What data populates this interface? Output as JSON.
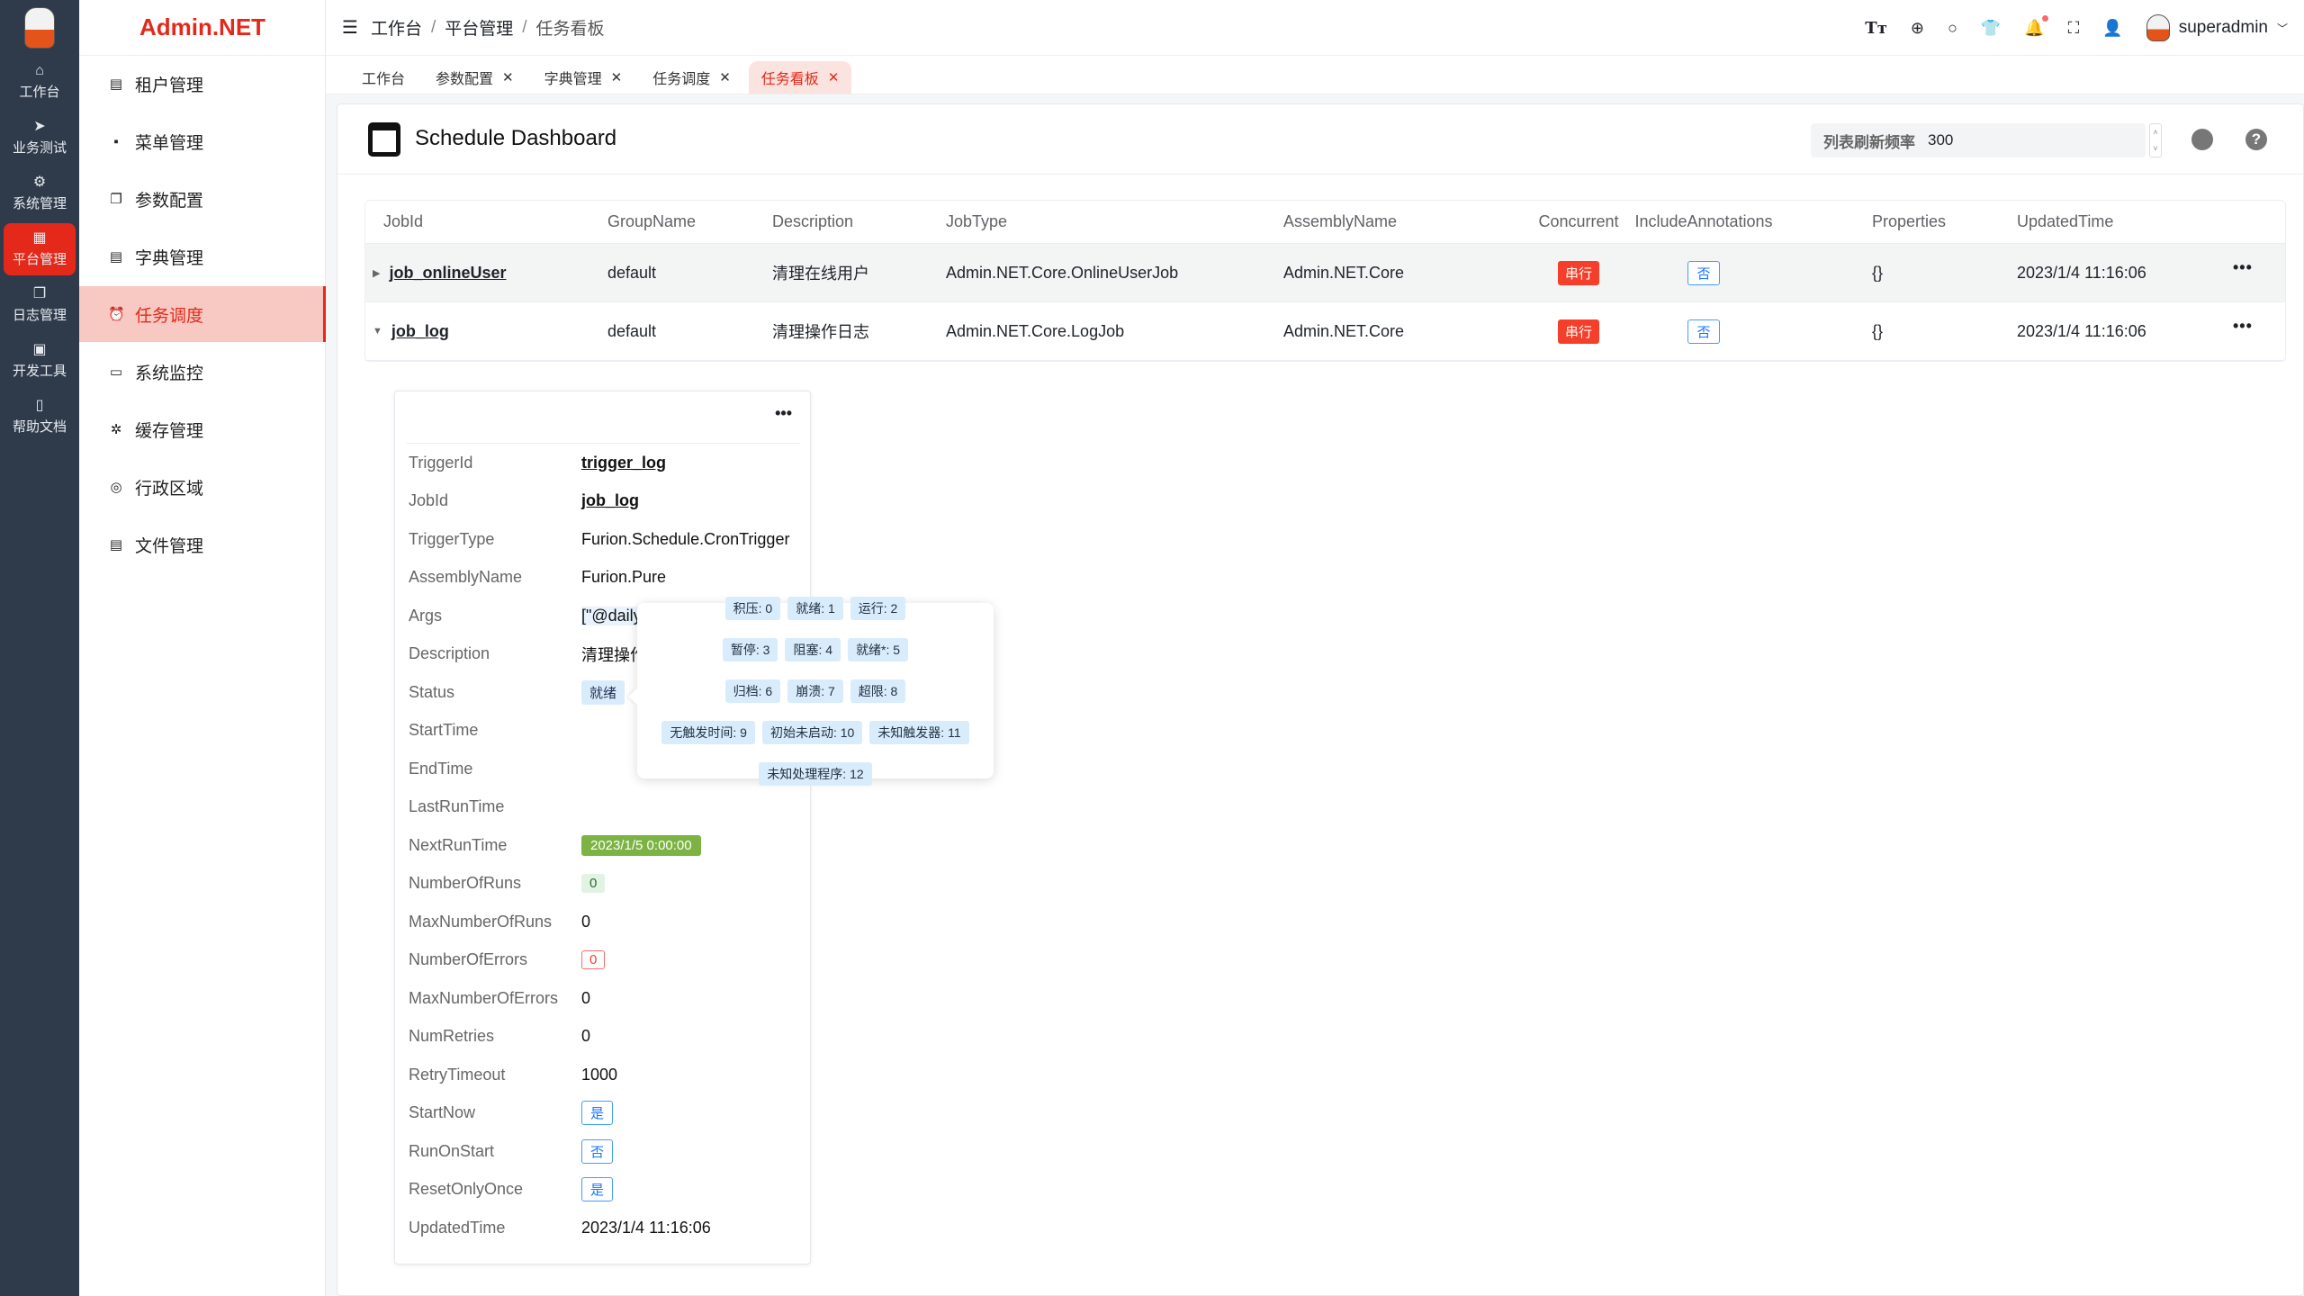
{
  "rail": {
    "items": [
      {
        "label": "工作台",
        "icon": "home-icon"
      },
      {
        "label": "业务测试",
        "icon": "send-icon"
      },
      {
        "label": "系统管理",
        "icon": "gear-icon"
      },
      {
        "label": "平台管理",
        "icon": "grid-icon",
        "active": true
      },
      {
        "label": "日志管理",
        "icon": "copy-icon"
      },
      {
        "label": "开发工具",
        "icon": "chip-icon"
      },
      {
        "label": "帮助文档",
        "icon": "book-icon"
      }
    ]
  },
  "brand": "Admin.NET",
  "menu": {
    "items": [
      {
        "label": "租户管理"
      },
      {
        "label": "菜单管理"
      },
      {
        "label": "参数配置"
      },
      {
        "label": "字典管理"
      },
      {
        "label": "任务调度",
        "active": true
      },
      {
        "label": "系统监控"
      },
      {
        "label": "缓存管理"
      },
      {
        "label": "行政区域"
      },
      {
        "label": "文件管理"
      }
    ]
  },
  "header": {
    "breadcrumb": [
      "工作台",
      "平台管理",
      "任务看板"
    ],
    "user": "superadmin",
    "font_icon_label": "Tт"
  },
  "tabs": [
    {
      "label": "工作台",
      "closable": false
    },
    {
      "label": "参数配置",
      "closable": true
    },
    {
      "label": "字典管理",
      "closable": true
    },
    {
      "label": "任务调度",
      "closable": true
    },
    {
      "label": "任务看板",
      "closable": true,
      "active": true
    }
  ],
  "page": {
    "title": "Schedule Dashboard",
    "refresh_label": "列表刷新频率",
    "refresh_value": "300"
  },
  "table": {
    "columns": [
      "JobId",
      "GroupName",
      "Description",
      "JobType",
      "AssemblyName",
      "Concurrent",
      "IncludeAnnotations",
      "Properties",
      "UpdatedTime"
    ],
    "rows": [
      {
        "JobId": "job_onlineUser",
        "GroupName": "default",
        "Description": "清理在线用户",
        "JobType": "Admin.NET.Core.OnlineUserJob",
        "AssemblyName": "Admin.NET.Core",
        "Concurrent": "串行",
        "IncludeAnnotations": "否",
        "Properties": "{}",
        "UpdatedTime": "2023/1/4 11:16:06",
        "expanded": false
      },
      {
        "JobId": "job_log",
        "GroupName": "default",
        "Description": "清理操作日志",
        "JobType": "Admin.NET.Core.LogJob",
        "AssemblyName": "Admin.NET.Core",
        "Concurrent": "串行",
        "IncludeAnnotations": "否",
        "Properties": "{}",
        "UpdatedTime": "2023/1/4 11:16:06",
        "expanded": true
      }
    ]
  },
  "trigger": {
    "fields": [
      {
        "k": "TriggerId",
        "v": "trigger_log",
        "style": "link"
      },
      {
        "k": "JobId",
        "v": "job_log",
        "style": "link"
      },
      {
        "k": "TriggerType",
        "v": "Furion.Schedule.CronTrigger"
      },
      {
        "k": "AssemblyName",
        "v": "Furion.Pure"
      },
      {
        "k": "Args",
        "v": "[\"@daily"
      },
      {
        "k": "Description",
        "v": "清理操作"
      },
      {
        "k": "Status",
        "v": "就绪",
        "style": "lb"
      },
      {
        "k": "StartTime",
        "v": ""
      },
      {
        "k": "EndTime",
        "v": ""
      },
      {
        "k": "LastRunTime",
        "v": ""
      },
      {
        "k": "NextRunTime",
        "v": "2023/1/5 0:00:00",
        "style": "green"
      },
      {
        "k": "NumberOfRuns",
        "v": "0",
        "style": "lg"
      },
      {
        "k": "MaxNumberOfRuns",
        "v": "0"
      },
      {
        "k": "NumberOfErrors",
        "v": "0",
        "style": "ro"
      },
      {
        "k": "MaxNumberOfErrors",
        "v": "0"
      },
      {
        "k": "NumRetries",
        "v": "0"
      },
      {
        "k": "RetryTimeout",
        "v": "1000"
      },
      {
        "k": "StartNow",
        "v": "是",
        "style": "blue"
      },
      {
        "k": "RunOnStart",
        "v": "否",
        "style": "blue"
      },
      {
        "k": "ResetOnlyOnce",
        "v": "是",
        "style": "blue"
      },
      {
        "k": "UpdatedTime",
        "v": "2023/1/4 11:16:06"
      }
    ]
  },
  "status_popover": {
    "rows": [
      [
        "积压: 0",
        "就绪: 1",
        "运行: 2"
      ],
      [
        "暂停: 3",
        "阻塞: 4",
        "就绪*: 5"
      ],
      [
        "归档: 6",
        "崩溃: 7",
        "超限: 8"
      ],
      [
        "无触发时间: 9",
        "初始未启动: 10",
        "未知触发器: 11"
      ],
      [
        "未知处理程序: 12"
      ]
    ]
  },
  "colors": {
    "accent": "#e4291a",
    "rail_bg": "#2f3b4b",
    "tag_red": "#f53f2a",
    "tag_blue": "#1677ff",
    "tag_green": "#7cb342"
  }
}
